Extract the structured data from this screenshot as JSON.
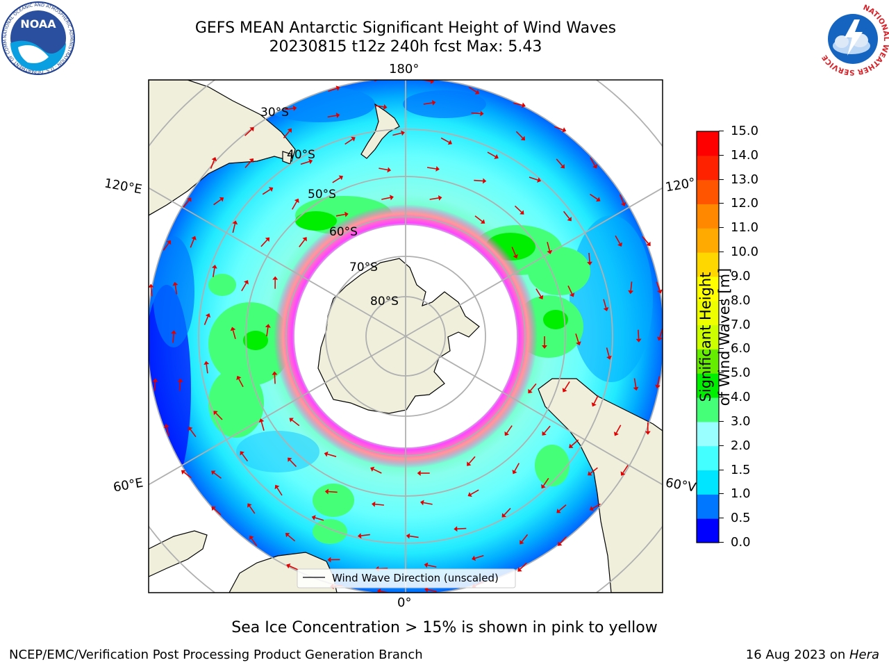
{
  "header": {
    "title_line1": "GEFS MEAN Antarctic Significant Height of Wind Waves",
    "title_line2": "20230815 t12z 240h fcst   Max: 5.43"
  },
  "logos": {
    "noaa_text": "NOAA",
    "noaa_ring": "NATIONAL OCEANIC AND ATMOSPHERIC ADMINISTRATION · U.S. DEPARTMENT OF COMMERCE",
    "nws_ring": "NATIONAL WEATHER SERVICE"
  },
  "map": {
    "longitude_labels": {
      "top": "180°",
      "bottom": "0°",
      "upper_left": "120°E",
      "upper_right": "120°",
      "lower_left": "60°E",
      "lower_right": "60°V"
    },
    "latitude_labels": [
      "30°S",
      "40°S",
      "50°S",
      "60°S",
      "70°S",
      "80°S"
    ],
    "legend_label": "Wind Wave Direction (unscaled)",
    "colors": {
      "land": "#efefdc",
      "ice_pink": "#ff44ff",
      "arrow": "#e00000",
      "ocean_outside": "#ffffff"
    }
  },
  "colorbar": {
    "label": "Significant Height of Wind Waves [m]",
    "ticks": [
      "0.0",
      "0.5",
      "1.0",
      "1.5",
      "2.0",
      "3.0",
      "4.0",
      "5.0",
      "6.0",
      "7.0",
      "8.0",
      "9.0",
      "10.0",
      "11.0",
      "12.0",
      "13.0",
      "14.0",
      "15.0"
    ],
    "colors": [
      "#0000ff",
      "#0077ff",
      "#00e5ff",
      "#44ffff",
      "#99ffff",
      "#44ff77",
      "#00ee00",
      "#66ee00",
      "#ccff00",
      "#eeff00",
      "#ffff00",
      "#ffd700",
      "#ffaa00",
      "#ff8800",
      "#ff5500",
      "#ff2200",
      "#ff0000"
    ]
  },
  "footer": {
    "note": "Sea Ice Concentration > 15% is shown in pink to yellow",
    "left": "NCEP/EMC/Verification Post Processing Product Generation Branch",
    "right_date": "16 Aug 2023 on ",
    "right_machine": "Hera"
  }
}
